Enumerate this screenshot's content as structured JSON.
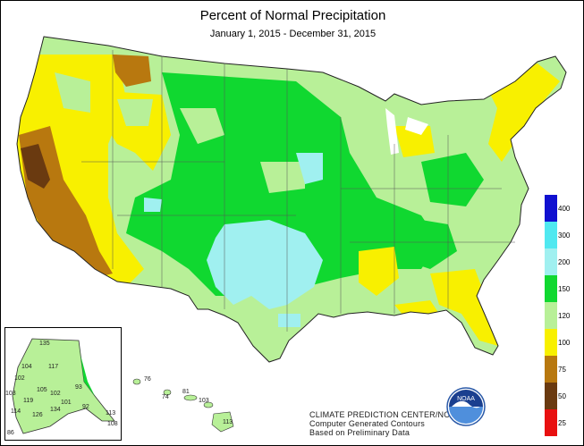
{
  "title": "Percent of Normal Precipitation",
  "subtitle": "January 1, 2015 - December 31, 2015",
  "legend": {
    "items": [
      {
        "label": "400",
        "color": "#1010d0"
      },
      {
        "label": "300",
        "color": "#50e8f0"
      },
      {
        "label": "200",
        "color": "#a0f0f0"
      },
      {
        "label": "150",
        "color": "#10d830"
      },
      {
        "label": "120",
        "color": "#b8f098"
      },
      {
        "label": "100",
        "color": "#f8f000"
      },
      {
        "label": "75",
        "color": "#b8780f"
      },
      {
        "label": "50",
        "color": "#6a3a10"
      },
      {
        "label": "25",
        "color": "#e81010"
      }
    ]
  },
  "alaska_labels": [
    "135",
    "117",
    "104",
    "102",
    "103",
    "105",
    "93",
    "119",
    "102",
    "114",
    "101",
    "126",
    "134",
    "92",
    "113",
    "108",
    "86"
  ],
  "hawaii_labels": [
    "76",
    "74",
    "81",
    "103",
    "113"
  ],
  "credit": {
    "line1": "CLIMATE PREDICTION CENTER/NOAA",
    "line2": "Computer Generated Contours",
    "line3": "Based on Preliminary Data"
  },
  "logo_text": "NOAA"
}
